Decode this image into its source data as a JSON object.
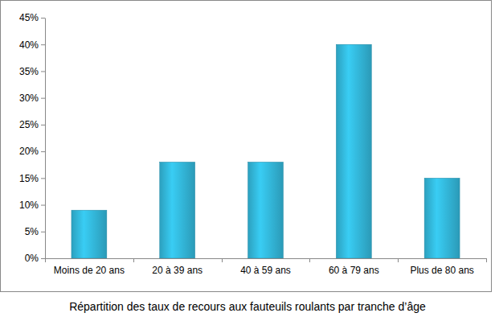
{
  "chart_data": {
    "type": "bar",
    "title": "Répartition des taux de recours aux fauteuils roulants par tranche d’âge",
    "categories": [
      "Moins de 20 ans",
      "20 à 39 ans",
      "40 à 59 ans",
      "60 à 79 ans",
      "Plus de 80 ans"
    ],
    "values": [
      9,
      18,
      18,
      40,
      15
    ],
    "color": "#33b8db",
    "ylim": [
      0,
      45
    ],
    "yticks": [
      {
        "value": 0,
        "label": "0%"
      },
      {
        "value": 5,
        "label": "5%"
      },
      {
        "value": 10,
        "label": "10%"
      },
      {
        "value": 15,
        "label": "15%"
      },
      {
        "value": 20,
        "label": "20%"
      },
      {
        "value": 25,
        "label": "25%"
      },
      {
        "value": 30,
        "label": "30%"
      },
      {
        "value": 35,
        "label": "35%"
      },
      {
        "value": 40,
        "label": "40%"
      },
      {
        "value": 45,
        "label": "45%"
      }
    ],
    "grid": false
  }
}
